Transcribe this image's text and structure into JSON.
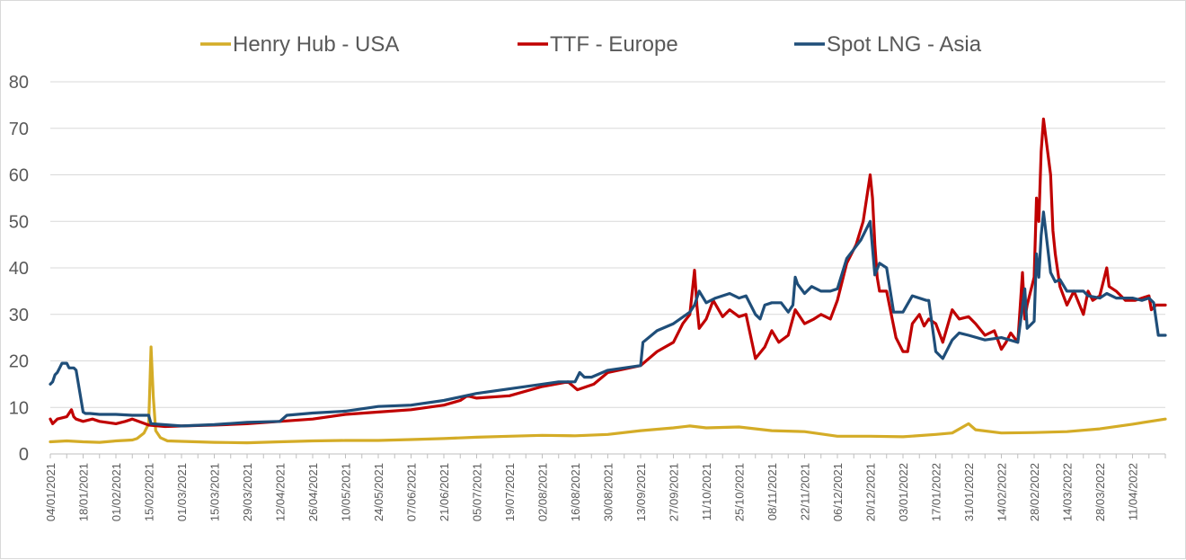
{
  "chart_data": {
    "type": "line",
    "title": "",
    "xlabel": "",
    "ylabel": "",
    "ylim": [
      0,
      80
    ],
    "yticks": [
      0,
      10,
      20,
      30,
      40,
      50,
      60,
      70,
      80
    ],
    "grid": "horizontal",
    "legend_position": "top",
    "x_start": "04/01/2021",
    "x_end": "25/04/2022",
    "x_tick_labels": [
      "04/01/2021",
      "18/01/2021",
      "01/02/2021",
      "15/02/2021",
      "01/03/2021",
      "15/03/2021",
      "29/03/2021",
      "12/04/2021",
      "26/04/2021",
      "10/05/2021",
      "24/05/2021",
      "07/06/2021",
      "21/06/2021",
      "05/07/2021",
      "19/07/2021",
      "02/08/2021",
      "16/08/2021",
      "30/08/2021",
      "13/09/2021",
      "27/09/2021",
      "11/10/2021",
      "25/10/2021",
      "08/11/2021",
      "22/11/2021",
      "06/12/2021",
      "20/12/2021",
      "03/01/2022",
      "17/01/2022",
      "31/01/2022",
      "14/02/2022",
      "28/02/2022",
      "14/03/2022",
      "28/03/2022",
      "11/04/2022"
    ],
    "series": [
      {
        "name": "Henry Hub - USA",
        "color": "#d4ac27",
        "x": [
          "04/01/2021",
          "11/01/2021",
          "18/01/2021",
          "25/01/2021",
          "01/02/2021",
          "08/02/2021",
          "10/02/2021",
          "13/02/2021",
          "15/02/2021",
          "16/02/2021",
          "17/02/2021",
          "18/02/2021",
          "20/02/2021",
          "23/02/2021",
          "01/03/2021",
          "15/03/2021",
          "29/03/2021",
          "12/04/2021",
          "26/04/2021",
          "10/05/2021",
          "24/05/2021",
          "07/06/2021",
          "21/06/2021",
          "05/07/2021",
          "19/07/2021",
          "02/08/2021",
          "16/08/2021",
          "30/08/2021",
          "13/09/2021",
          "27/09/2021",
          "04/10/2021",
          "11/10/2021",
          "25/10/2021",
          "08/11/2021",
          "22/11/2021",
          "06/12/2021",
          "20/12/2021",
          "03/01/2022",
          "17/01/2022",
          "24/01/2022",
          "31/01/2022",
          "03/02/2022",
          "14/02/2022",
          "28/02/2022",
          "14/03/2022",
          "28/03/2022",
          "11/04/2022",
          "25/04/2022"
        ],
        "values": [
          2.6,
          2.8,
          2.6,
          2.5,
          2.8,
          3.0,
          3.3,
          4.5,
          6.5,
          23.0,
          12.0,
          5.0,
          3.5,
          2.8,
          2.7,
          2.5,
          2.4,
          2.6,
          2.8,
          2.9,
          2.9,
          3.1,
          3.3,
          3.6,
          3.8,
          4.0,
          3.9,
          4.2,
          5.0,
          5.6,
          6.0,
          5.6,
          5.8,
          5.0,
          4.8,
          3.8,
          3.8,
          3.7,
          4.2,
          4.5,
          6.5,
          5.2,
          4.5,
          4.6,
          4.8,
          5.4,
          6.4,
          7.5
        ]
      },
      {
        "name": "TTF - Europe",
        "color": "#c00000",
        "x": [
          "04/01/2021",
          "05/01/2021",
          "07/01/2021",
          "11/01/2021",
          "13/01/2021",
          "14/01/2021",
          "15/01/2021",
          "18/01/2021",
          "22/01/2021",
          "25/01/2021",
          "01/02/2021",
          "05/02/2021",
          "08/02/2021",
          "15/02/2021",
          "22/02/2021",
          "01/03/2021",
          "15/03/2021",
          "29/03/2021",
          "12/04/2021",
          "26/04/2021",
          "10/05/2021",
          "24/05/2021",
          "07/06/2021",
          "21/06/2021",
          "28/06/2021",
          "01/07/2021",
          "05/07/2021",
          "19/07/2021",
          "02/08/2021",
          "13/08/2021",
          "17/08/2021",
          "24/08/2021",
          "30/08/2021",
          "13/09/2021",
          "20/09/2021",
          "27/09/2021",
          "01/10/2021",
          "04/10/2021",
          "06/10/2021",
          "07/10/2021",
          "08/10/2021",
          "11/10/2021",
          "14/10/2021",
          "18/10/2021",
          "21/10/2021",
          "25/10/2021",
          "28/10/2021",
          "01/11/2021",
          "05/11/2021",
          "08/11/2021",
          "11/11/2021",
          "15/11/2021",
          "18/11/2021",
          "22/11/2021",
          "26/11/2021",
          "29/11/2021",
          "03/12/2021",
          "06/12/2021",
          "10/12/2021",
          "14/12/2021",
          "17/12/2021",
          "20/12/2021",
          "21/12/2021",
          "22/12/2021",
          "23/12/2021",
          "24/12/2021",
          "27/12/2021",
          "29/12/2021",
          "31/12/2021",
          "03/01/2022",
          "05/01/2022",
          "07/01/2022",
          "10/01/2022",
          "12/01/2022",
          "14/01/2022",
          "17/01/2022",
          "20/01/2022",
          "24/01/2022",
          "27/01/2022",
          "31/01/2022",
          "03/02/2022",
          "07/02/2022",
          "11/02/2022",
          "14/02/2022",
          "16/02/2022",
          "18/02/2022",
          "21/02/2022",
          "23/02/2022",
          "24/02/2022",
          "25/02/2022",
          "28/02/2022",
          "01/03/2022",
          "02/03/2022",
          "03/03/2022",
          "04/03/2022",
          "07/03/2022",
          "08/03/2022",
          "09/03/2022",
          "11/03/2022",
          "14/03/2022",
          "17/03/2022",
          "21/03/2022",
          "23/03/2022",
          "25/03/2022",
          "28/03/2022",
          "31/03/2022",
          "01/04/2022",
          "04/04/2022",
          "08/04/2022",
          "12/04/2022",
          "18/04/2022",
          "19/04/2022",
          "21/04/2022",
          "25/04/2022"
        ],
        "values": [
          7.5,
          6.5,
          7.5,
          8.0,
          9.5,
          8.0,
          7.5,
          7.0,
          7.5,
          7.0,
          6.5,
          7.0,
          7.5,
          6.2,
          5.9,
          6.0,
          6.2,
          6.5,
          7.0,
          7.5,
          8.5,
          9.0,
          9.5,
          10.5,
          11.5,
          12.5,
          12.0,
          12.5,
          14.5,
          15.5,
          13.8,
          15.0,
          17.5,
          19.0,
          22.0,
          24.0,
          28.0,
          30.0,
          39.5,
          32.0,
          27.0,
          29.0,
          33.0,
          29.5,
          31.0,
          29.5,
          30.0,
          20.5,
          23.0,
          26.5,
          24.0,
          25.5,
          31.0,
          28.0,
          29.0,
          30.0,
          29.0,
          33.0,
          41.0,
          45.0,
          50.0,
          60.0,
          55.0,
          45.0,
          38.0,
          35.0,
          35.0,
          30.0,
          25.0,
          22.0,
          22.0,
          28.0,
          30.0,
          27.5,
          29.0,
          28.0,
          24.0,
          31.0,
          29.0,
          29.5,
          28.0,
          25.5,
          26.5,
          22.5,
          24.0,
          26.0,
          24.0,
          39.0,
          29.0,
          32.0,
          38.0,
          55.0,
          50.0,
          65.0,
          72.0,
          60.0,
          48.0,
          43.0,
          36.0,
          32.0,
          35.0,
          30.0,
          35.0,
          33.0,
          34.0,
          40.0,
          36.0,
          35.0,
          33.0,
          33.0,
          34.0,
          31.0,
          32.0,
          32.0
        ]
      },
      {
        "name": "Spot LNG - Asia",
        "color": "#1f4e79",
        "x": [
          "04/01/2021",
          "05/01/2021",
          "06/01/2021",
          "07/01/2021",
          "08/01/2021",
          "09/01/2021",
          "11/01/2021",
          "12/01/2021",
          "13/01/2021",
          "14/01/2021",
          "15/01/2021",
          "18/01/2021",
          "19/01/2021",
          "21/01/2021",
          "25/01/2021",
          "01/02/2021",
          "08/02/2021",
          "15/02/2021",
          "16/02/2021",
          "01/03/2021",
          "15/03/2021",
          "29/03/2021",
          "12/04/2021",
          "15/04/2021",
          "26/04/2021",
          "10/05/2021",
          "24/05/2021",
          "07/06/2021",
          "21/06/2021",
          "05/07/2021",
          "19/07/2021",
          "02/08/2021",
          "09/08/2021",
          "16/08/2021",
          "18/08/2021",
          "20/08/2021",
          "23/08/2021",
          "30/08/2021",
          "13/09/2021",
          "14/09/2021",
          "20/09/2021",
          "27/09/2021",
          "04/10/2021",
          "06/10/2021",
          "08/10/2021",
          "11/10/2021",
          "15/10/2021",
          "21/10/2021",
          "25/10/2021",
          "28/10/2021",
          "01/11/2021",
          "03/11/2021",
          "05/11/2021",
          "08/11/2021",
          "12/11/2021",
          "15/11/2021",
          "17/11/2021",
          "18/11/2021",
          "19/11/2021",
          "22/11/2021",
          "25/11/2021",
          "29/11/2021",
          "03/12/2021",
          "06/12/2021",
          "10/12/2021",
          "13/12/2021",
          "16/12/2021",
          "20/12/2021",
          "22/12/2021",
          "24/12/2021",
          "27/12/2021",
          "30/12/2021",
          "03/01/2022",
          "07/01/2022",
          "13/01/2022",
          "14/01/2022",
          "17/01/2022",
          "20/01/2022",
          "24/01/2022",
          "27/01/2022",
          "31/01/2022",
          "07/02/2022",
          "14/02/2022",
          "21/02/2022",
          "24/02/2022",
          "25/02/2022",
          "28/02/2022",
          "01/03/2022",
          "02/03/2022",
          "03/03/2022",
          "04/03/2022",
          "07/03/2022",
          "09/03/2022",
          "11/03/2022",
          "14/03/2022",
          "21/03/2022",
          "23/03/2022",
          "28/03/2022",
          "31/03/2022",
          "04/04/2022",
          "11/04/2022",
          "15/04/2022",
          "18/04/2022",
          "20/04/2022",
          "22/04/2022",
          "25/04/2022"
        ],
        "values": [
          15.0,
          15.5,
          17.0,
          17.5,
          18.5,
          19.5,
          19.5,
          18.5,
          18.5,
          18.5,
          18.0,
          9.0,
          8.7,
          8.7,
          8.5,
          8.5,
          8.3,
          8.3,
          6.5,
          6.0,
          6.3,
          6.8,
          7.0,
          8.3,
          8.8,
          9.2,
          10.2,
          10.5,
          11.5,
          13.0,
          14.0,
          15.0,
          15.5,
          15.5,
          17.5,
          16.5,
          16.5,
          18.0,
          19.0,
          24.0,
          26.5,
          28.0,
          30.5,
          32.0,
          35.0,
          32.5,
          33.5,
          34.5,
          33.5,
          34.0,
          30.0,
          29.0,
          32.0,
          32.5,
          32.5,
          30.5,
          32.0,
          38.0,
          36.5,
          34.5,
          36.0,
          35.0,
          35.0,
          35.5,
          42.0,
          44.0,
          46.0,
          50.0,
          38.5,
          41.0,
          40.0,
          30.5,
          30.5,
          34.0,
          33.0,
          33.0,
          22.0,
          20.5,
          24.5,
          26.0,
          25.5,
          24.5,
          25.0,
          24.0,
          35.5,
          27.0,
          28.5,
          43.0,
          38.0,
          47.0,
          52.0,
          39.0,
          37.0,
          37.5,
          35.0,
          35.0,
          34.0,
          33.5,
          34.5,
          33.5,
          33.5,
          33.0,
          33.5,
          32.5,
          25.5,
          25.5
        ]
      }
    ]
  }
}
